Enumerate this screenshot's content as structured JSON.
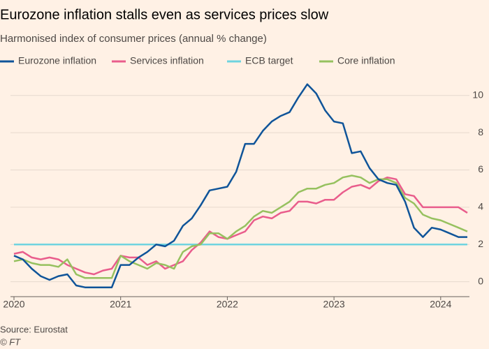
{
  "chart_data": {
    "type": "line",
    "title": "Eurozone inflation stalls even as services prices slow",
    "subtitle": "Harmonised index of consumer prices (annual % change)",
    "source": "Source: Eurostat",
    "credit": "© FT",
    "categories": [
      "2020",
      null,
      null,
      null,
      null,
      null,
      null,
      null,
      null,
      null,
      null,
      null,
      "2021",
      null,
      null,
      null,
      null,
      null,
      null,
      null,
      null,
      null,
      null,
      null,
      "2022",
      null,
      null,
      null,
      null,
      null,
      null,
      null,
      null,
      null,
      null,
      null,
      "2023",
      null,
      null,
      null,
      null,
      null,
      null,
      null,
      null,
      null,
      null,
      null,
      "2024",
      null,
      null,
      null
    ],
    "ylim": [
      -0.8,
      11
    ],
    "yticks": [
      0,
      2,
      4,
      6,
      8,
      10
    ],
    "grid": true,
    "series": [
      {
        "name": "Eurozone inflation",
        "color": "#0f5499",
        "values": [
          1.4,
          1.2,
          0.7,
          0.3,
          0.1,
          0.3,
          0.4,
          -0.2,
          -0.3,
          -0.3,
          -0.3,
          -0.3,
          0.9,
          0.9,
          1.3,
          1.6,
          2.0,
          1.9,
          2.2,
          3.0,
          3.4,
          4.1,
          4.9,
          5.0,
          5.1,
          5.9,
          7.4,
          7.4,
          8.1,
          8.6,
          8.9,
          9.1,
          9.9,
          10.6,
          10.1,
          9.2,
          8.6,
          8.5,
          6.9,
          7.0,
          6.1,
          5.5,
          5.3,
          5.2,
          4.3,
          2.9,
          2.4,
          2.9,
          2.8,
          2.6,
          2.4,
          2.4
        ]
      },
      {
        "name": "Services inflation",
        "color": "#e95d8c",
        "values": [
          1.5,
          1.6,
          1.3,
          1.2,
          1.3,
          1.2,
          0.9,
          0.7,
          0.5,
          0.4,
          0.6,
          0.7,
          1.4,
          1.3,
          1.3,
          0.9,
          1.1,
          0.7,
          0.9,
          1.1,
          1.7,
          2.1,
          2.7,
          2.4,
          2.3,
          2.5,
          2.7,
          3.3,
          3.5,
          3.4,
          3.7,
          3.8,
          4.3,
          4.3,
          4.2,
          4.4,
          4.4,
          4.8,
          5.1,
          5.2,
          5.0,
          5.4,
          5.6,
          5.5,
          4.7,
          4.6,
          4.0,
          4.0,
          4.0,
          4.0,
          4.0,
          3.7
        ]
      },
      {
        "name": "ECB target",
        "color": "#6fd3df",
        "values": [
          2,
          2,
          2,
          2,
          2,
          2,
          2,
          2,
          2,
          2,
          2,
          2,
          2,
          2,
          2,
          2,
          2,
          2,
          2,
          2,
          2,
          2,
          2,
          2,
          2,
          2,
          2,
          2,
          2,
          2,
          2,
          2,
          2,
          2,
          2,
          2,
          2,
          2,
          2,
          2,
          2,
          2,
          2,
          2,
          2,
          2,
          2,
          2,
          2,
          2,
          2,
          2
        ]
      },
      {
        "name": "Core inflation",
        "color": "#96c15f",
        "values": [
          1.1,
          1.2,
          1.0,
          0.9,
          0.9,
          0.8,
          1.2,
          0.4,
          0.2,
          0.2,
          0.2,
          0.2,
          1.4,
          1.1,
          0.9,
          0.7,
          1.0,
          0.9,
          0.7,
          1.6,
          1.9,
          2.0,
          2.6,
          2.6,
          2.3,
          2.7,
          3.0,
          3.5,
          3.8,
          3.7,
          4.0,
          4.3,
          4.8,
          5.0,
          5.0,
          5.2,
          5.3,
          5.6,
          5.7,
          5.6,
          5.3,
          5.5,
          5.5,
          5.3,
          4.5,
          4.2,
          3.6,
          3.4,
          3.3,
          3.1,
          2.9,
          2.7
        ]
      }
    ]
  }
}
